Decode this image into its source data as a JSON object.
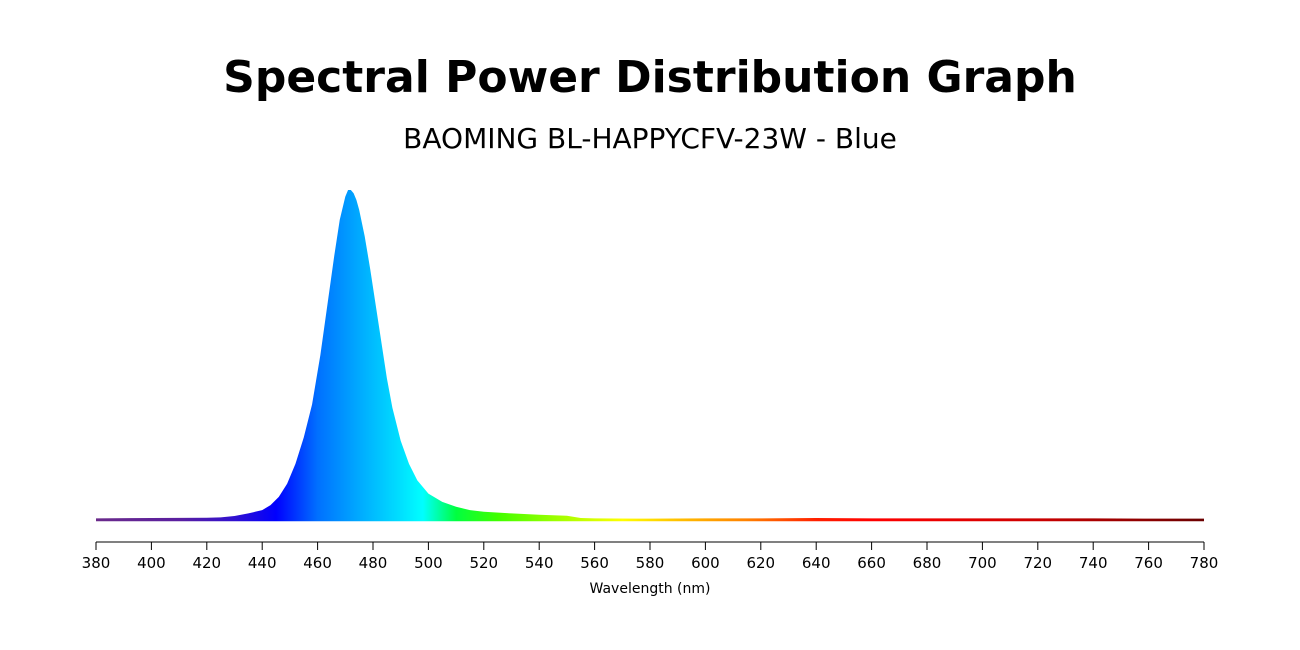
{
  "chart_data": {
    "type": "area",
    "title": "Spectral Power Distribution Graph",
    "subtitle": "BAOMING BL-HAPPYCFV-23W - Blue",
    "xlabel": "Wavelength (nm)",
    "ylabel": "",
    "xlim": [
      380,
      780
    ],
    "ylim": [
      0,
      1
    ],
    "xticks": [
      380,
      400,
      420,
      440,
      460,
      480,
      500,
      520,
      540,
      560,
      580,
      600,
      620,
      640,
      660,
      680,
      700,
      720,
      740,
      760,
      780
    ],
    "yaxis_visible": false,
    "grid": false,
    "legend": "none",
    "fill": "wavelength-spectrum-gradient",
    "series": [
      {
        "x": [
          380,
          400,
          420,
          425,
          430,
          435,
          440,
          443,
          446,
          449,
          452,
          455,
          458,
          461,
          464,
          466,
          468,
          470,
          471,
          472,
          473,
          474,
          475,
          477,
          479,
          481,
          483,
          485,
          487,
          490,
          493,
          496,
          500,
          505,
          510,
          515,
          520,
          530,
          540,
          550,
          555,
          560,
          580,
          600,
          620,
          640,
          660,
          680,
          700,
          720,
          740,
          760,
          780
        ],
        "y": [
          0.005,
          0.006,
          0.007,
          0.008,
          0.012,
          0.02,
          0.03,
          0.045,
          0.07,
          0.11,
          0.17,
          0.25,
          0.35,
          0.5,
          0.68,
          0.8,
          0.91,
          0.98,
          1.0,
          1.0,
          0.99,
          0.97,
          0.94,
          0.86,
          0.76,
          0.65,
          0.54,
          0.43,
          0.34,
          0.24,
          0.17,
          0.12,
          0.08,
          0.055,
          0.04,
          0.03,
          0.025,
          0.02,
          0.016,
          0.013,
          0.006,
          0.005,
          0.004,
          0.005,
          0.005,
          0.006,
          0.005,
          0.005,
          0.005,
          0.005,
          0.005,
          0.004,
          0.004
        ]
      }
    ]
  }
}
